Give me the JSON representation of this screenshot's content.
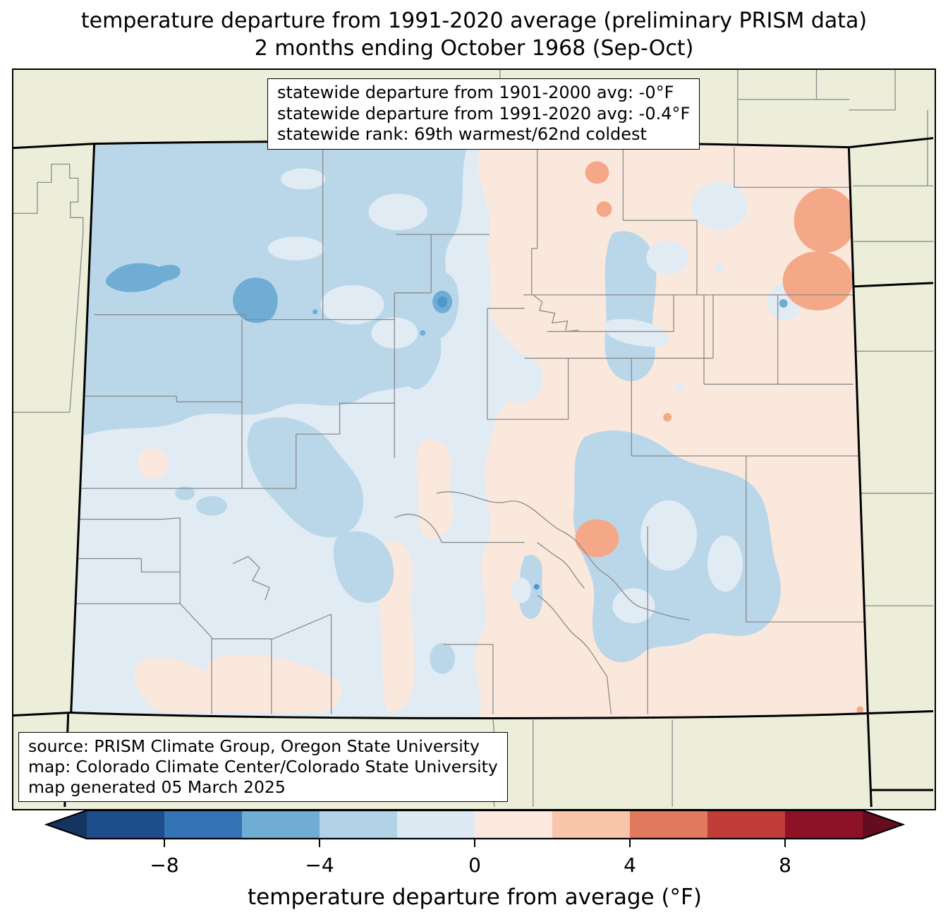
{
  "title": {
    "line1": "temperature departure from 1991-2020 average (preliminary PRISM data)",
    "line2": "2 months ending October 1968 (Sep-Oct)"
  },
  "stats_box": {
    "line1": "statewide departure from 1901-2000 avg: -0°F",
    "line2": "statewide departure from 1991-2020 avg: -0.4°F",
    "line3": "statewide rank: 69th warmest/62nd coldest"
  },
  "source_box": {
    "line1": "source: PRISM Climate Group, Oregon State University",
    "line2": "map: Colorado Climate Center/Colorado State University",
    "line3": "map generated 05 March 2025"
  },
  "colorbar": {
    "label": "temperature departure from average (°F)",
    "range_f": [
      -10,
      10
    ],
    "ticks": [
      {
        "value": -8,
        "label": "−8"
      },
      {
        "value": -4,
        "label": "−4"
      },
      {
        "value": 0,
        "label": "0"
      },
      {
        "value": 4,
        "label": "4"
      },
      {
        "value": 8,
        "label": "8"
      }
    ],
    "segment_colors": [
      "#1d4d8b",
      "#3473b5",
      "#6fadd3",
      "#b2d3e7",
      "#dde9f3",
      "#fbe9e0",
      "#f9c5ab",
      "#e1795d",
      "#c03c39",
      "#8e1227"
    ],
    "arrow_left_color": "#14355f",
    "arrow_right_color": "#650c20"
  },
  "map": {
    "region": "Colorado",
    "palette": {
      "outside_beige": "#eceeda",
      "blue_light": "#e1ebf4",
      "blue_medium": "#bad7ea",
      "blue_strong": "#6fadd4",
      "blue_dark": "#4e97c8",
      "pink_light": "#fbe8dd",
      "salmon": "#f5a888",
      "county_line": "#8a8a8a",
      "state_line": "#000000"
    }
  },
  "chart_data": {
    "type": "heatmap",
    "title": "temperature departure from 1991-2020 average (preliminary PRISM data), 2 months ending October 1968 (Sep-Oct)",
    "region": "Colorado",
    "colorbar_label": "temperature departure from average (°F)",
    "colorbar_ticks": [
      -8,
      -4,
      0,
      4,
      8
    ],
    "colorbar_range_f": [
      -10,
      10
    ],
    "statewide_departure_from_1901_2000_avg_F": "-0",
    "statewide_departure_from_1991_2020_avg_F": "-0.4",
    "statewide_rank": "69th warmest/62nd coldest",
    "pattern": "western and central Colorado mostly 0 to -4°F (blues, coldest pockets -4 to -6 in the northwest and Grand County); eastern plains 0 to +4°F (pinks, warmest spots +2 to +4 near the northeast border and southeast)"
  }
}
